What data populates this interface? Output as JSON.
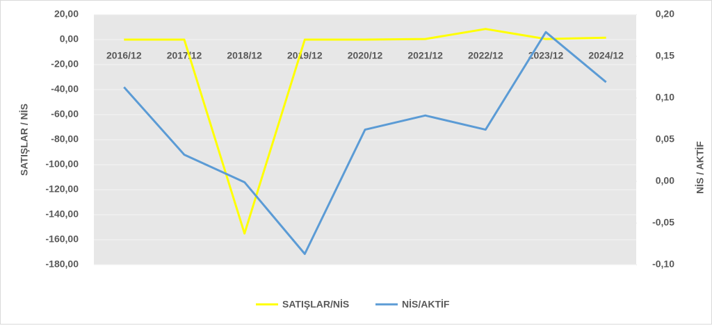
{
  "chart_data": {
    "type": "line",
    "y_label": "SATIŞLAR / NİS",
    "y2_label": "NİS / AKTİF",
    "categories": [
      "2016/12",
      "2017/12",
      "2018/12",
      "2019/12",
      "2020/12",
      "2021/12",
      "2022/12",
      "2023/12",
      "2024/12"
    ],
    "series": [
      {
        "name": "SATIŞLAR/NİS",
        "color": "#ffff00",
        "values": [
          0,
          0,
          -155,
          0,
          0,
          0.5,
          8.5,
          0.5,
          1.5
        ]
      },
      {
        "name": "NİS/AKTİF",
        "color": "#5b9bd5",
        "axis": "y2",
        "values": [
          0.113,
          0.032,
          -0.001,
          -0.087,
          0.062,
          0.079,
          0.062,
          0.179,
          0.119
        ]
      }
    ],
    "ylim": [
      -180,
      20
    ],
    "yticks": [
      {
        "value": 20,
        "label": "20,00"
      },
      {
        "value": 0,
        "label": "0,00"
      },
      {
        "value": -20,
        "label": "-20,00"
      },
      {
        "value": -40,
        "label": "-40,00"
      },
      {
        "value": -60,
        "label": "-60,00"
      },
      {
        "value": -80,
        "label": "-80,00"
      },
      {
        "value": -100,
        "label": "-100,00"
      },
      {
        "value": -120,
        "label": "-120,00"
      },
      {
        "value": -140,
        "label": "-140,00"
      },
      {
        "value": -160,
        "label": "-160,00"
      },
      {
        "value": -180,
        "label": "-180,00"
      }
    ],
    "y2lim": [
      -0.1,
      0.2
    ],
    "y2ticks": [
      {
        "value": 0.2,
        "label": "0,20"
      },
      {
        "value": 0.15,
        "label": "0,15"
      },
      {
        "value": 0.1,
        "label": "0,10"
      },
      {
        "value": 0.05,
        "label": "0,05"
      },
      {
        "value": 0,
        "label": "0,00"
      },
      {
        "value": -0.05,
        "label": "-0,05"
      },
      {
        "value": -0.1,
        "label": "-0,10"
      }
    ],
    "grid": true
  }
}
